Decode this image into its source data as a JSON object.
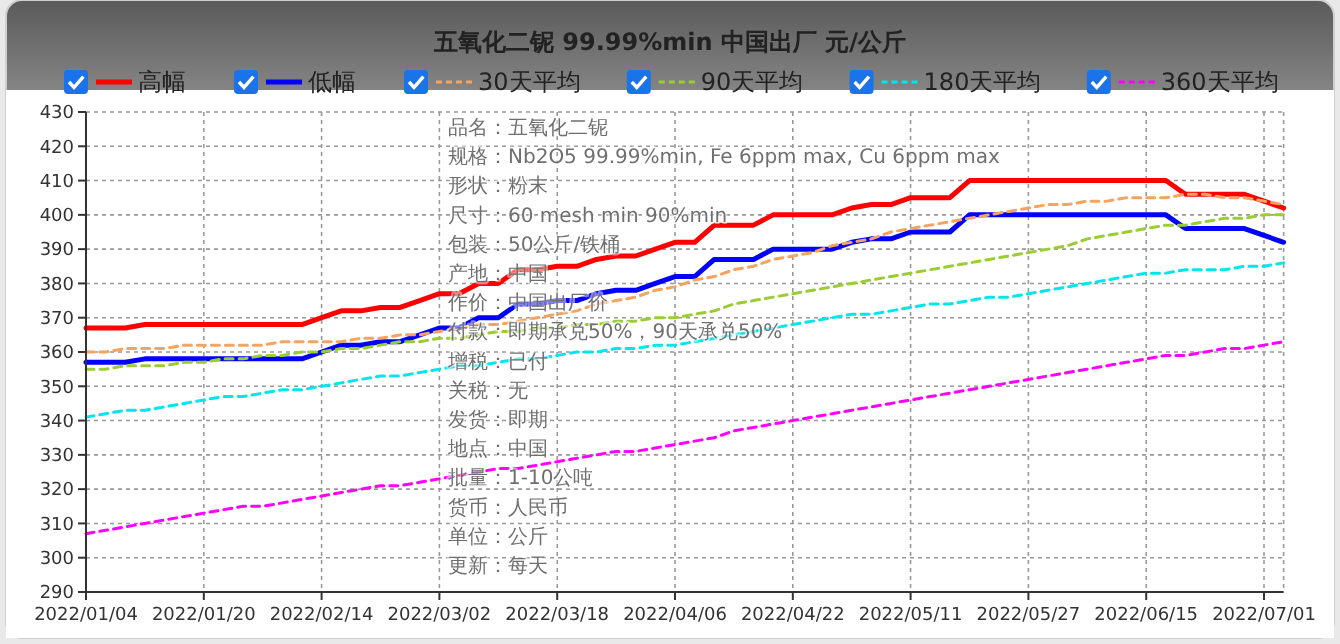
{
  "chart_data": {
    "type": "line",
    "title": "五氧化二铌 99.99%min 中国出厂 元/公斤",
    "categories": [
      "2022/01/04",
      null,
      null,
      null,
      null,
      null,
      "2022/01/20",
      null,
      null,
      null,
      null,
      null,
      "2022/02/14",
      null,
      null,
      null,
      null,
      null,
      "2022/03/02",
      null,
      null,
      null,
      null,
      null,
      "2022/03/18",
      null,
      null,
      null,
      null,
      null,
      "2022/04/06",
      null,
      null,
      null,
      null,
      null,
      "2022/04/22",
      null,
      null,
      null,
      null,
      null,
      "2022/05/11",
      null,
      null,
      null,
      null,
      null,
      "2022/05/27",
      null,
      null,
      null,
      null,
      null,
      "2022/06/15",
      null,
      null,
      null,
      null,
      null,
      "2022/07/01",
      null
    ],
    "series": [
      {
        "name": "高幅",
        "color": "#ff0000",
        "line_style": "solid",
        "values": [
          367,
          367,
          367,
          368,
          368,
          368,
          368,
          368,
          368,
          368,
          368,
          368,
          370,
          372,
          372,
          373,
          373,
          375,
          377,
          377,
          380,
          380,
          384,
          384,
          385,
          385,
          387,
          388,
          388,
          390,
          392,
          392,
          397,
          397,
          397,
          400,
          400,
          400,
          400,
          402,
          403,
          403,
          405,
          405,
          405,
          410,
          410,
          410,
          410,
          410,
          410,
          410,
          410,
          410,
          410,
          410,
          406,
          406,
          406,
          406,
          404,
          402
        ]
      },
      {
        "name": "低幅",
        "color": "#0000ff",
        "line_style": "solid",
        "values": [
          357,
          357,
          357,
          358,
          358,
          358,
          358,
          358,
          358,
          358,
          358,
          358,
          360,
          362,
          362,
          363,
          363,
          365,
          367,
          367,
          370,
          370,
          374,
          374,
          375,
          375,
          377,
          378,
          378,
          380,
          382,
          382,
          387,
          387,
          387,
          390,
          390,
          390,
          390,
          392,
          393,
          393,
          395,
          395,
          395,
          400,
          400,
          400,
          400,
          400,
          400,
          400,
          400,
          400,
          400,
          400,
          396,
          396,
          396,
          396,
          394,
          392
        ]
      },
      {
        "name": "30天平均",
        "color": "#f4a460",
        "line_style": "dashed",
        "values": [
          360,
          360,
          361,
          361,
          361,
          362,
          362,
          362,
          362,
          362,
          363,
          363,
          363,
          363,
          364,
          364,
          365,
          365,
          366,
          367,
          368,
          368,
          369,
          370,
          371,
          372,
          374,
          375,
          376,
          378,
          379,
          381,
          382,
          384,
          385,
          387,
          388,
          389,
          391,
          392,
          393,
          395,
          396,
          397,
          398,
          399,
          400,
          401,
          402,
          403,
          403,
          404,
          404,
          405,
          405,
          405,
          406,
          406,
          405,
          405,
          404,
          403
        ]
      },
      {
        "name": "90天平均",
        "color": "#9acd32",
        "line_style": "dashed",
        "values": [
          355,
          355,
          356,
          356,
          356,
          357,
          357,
          358,
          358,
          359,
          359,
          360,
          360,
          361,
          361,
          362,
          363,
          363,
          364,
          364,
          365,
          366,
          366,
          367,
          367,
          368,
          368,
          369,
          369,
          370,
          370,
          371,
          372,
          374,
          375,
          376,
          377,
          378,
          379,
          380,
          381,
          382,
          383,
          384,
          385,
          386,
          387,
          388,
          389,
          390,
          391,
          393,
          394,
          395,
          396,
          397,
          397,
          398,
          399,
          399,
          400,
          400
        ]
      },
      {
        "name": "180天平均",
        "color": "#00e5ee",
        "line_style": "dashed",
        "values": [
          341,
          342,
          343,
          343,
          344,
          345,
          346,
          347,
          347,
          348,
          349,
          349,
          350,
          351,
          352,
          353,
          353,
          354,
          355,
          356,
          356,
          357,
          358,
          358,
          359,
          360,
          360,
          361,
          361,
          362,
          362,
          363,
          364,
          365,
          366,
          367,
          368,
          369,
          370,
          371,
          371,
          372,
          373,
          374,
          374,
          375,
          376,
          376,
          377,
          378,
          379,
          380,
          381,
          382,
          383,
          383,
          384,
          384,
          384,
          385,
          385,
          386
        ]
      },
      {
        "name": "360天平均",
        "color": "#ff00ff",
        "line_style": "dashed",
        "values": [
          307,
          308,
          309,
          310,
          311,
          312,
          313,
          314,
          315,
          315,
          316,
          317,
          318,
          319,
          320,
          321,
          321,
          322,
          323,
          324,
          325,
          326,
          326,
          327,
          328,
          329,
          330,
          331,
          331,
          332,
          333,
          334,
          335,
          337,
          338,
          339,
          340,
          341,
          342,
          343,
          344,
          345,
          346,
          347,
          348,
          349,
          350,
          351,
          352,
          353,
          354,
          355,
          356,
          357,
          358,
          359,
          359,
          360,
          361,
          361,
          362,
          363
        ]
      }
    ],
    "ylim": [
      290,
      430
    ],
    "yticks": [
      290,
      300,
      310,
      320,
      330,
      340,
      350,
      360,
      370,
      380,
      390,
      400,
      410,
      420,
      430
    ],
    "grid": true,
    "legend": "top",
    "annotations": [
      "品名：五氧化二铌",
      "规格：Nb2O5 99.99%min, Fe 6ppm max, Cu 6ppm max",
      "形状：粉末",
      "尺寸：60 mesh min 90%min",
      "包装：50公斤/铁桶",
      "产地：中国",
      "作价：中国出厂价",
      "付款：即期承兑50%，90天承兑50%",
      "增税：已付",
      "关税：无",
      "发货：即期",
      "地点：中国",
      "批量：1-10公吨",
      "货币：人民币",
      "单位：公斤",
      "更新：每天"
    ]
  }
}
